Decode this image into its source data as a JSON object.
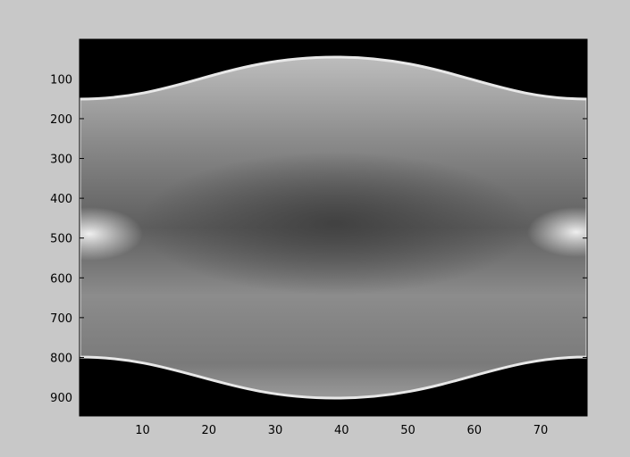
{
  "chart_data": {
    "type": "image",
    "xlim": [
      0.5,
      77
    ],
    "ylim": [
      0.5,
      947
    ],
    "y_reversed": true,
    "xticks": [
      10,
      20,
      30,
      40,
      50,
      60,
      70
    ],
    "yticks": [
      100,
      200,
      300,
      400,
      500,
      600,
      700,
      800,
      900
    ]
  }
}
